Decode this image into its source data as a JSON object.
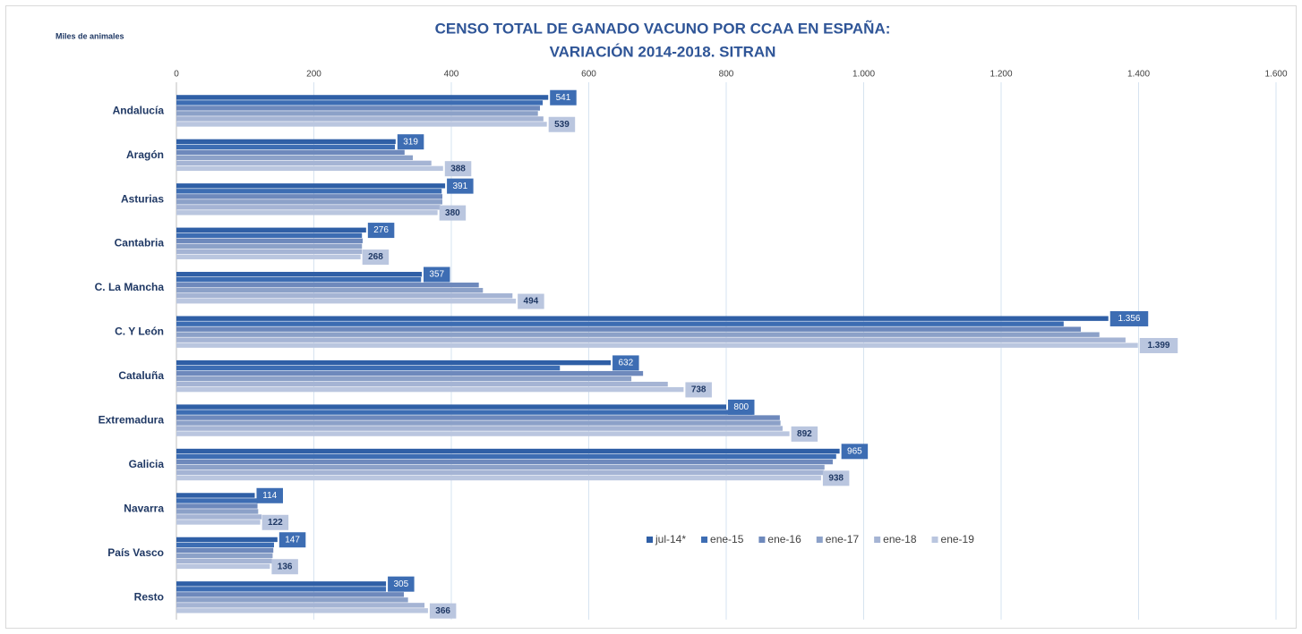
{
  "chart_data": {
    "type": "hbar",
    "title": [
      "CENSO TOTAL DE GANADO VACUNO POR CCAA EN ESPAÑA:",
      "VARIACIÓN 2014-2018. SITRAN"
    ],
    "unit_label": "Miles de animales",
    "categories": [
      "Andalucía",
      "Aragón",
      "Asturias",
      "Cantabria",
      "C. La Mancha",
      "C. Y León",
      "Cataluña",
      "Extremadura",
      "Galicia",
      "Navarra",
      "País Vasco",
      "Resto"
    ],
    "series": [
      {
        "name": "jul-14*",
        "color": "#2f5fa6",
        "values": [
          541,
          319,
          391,
          276,
          357,
          1356,
          632,
          800,
          965,
          114,
          147,
          305
        ],
        "value_labels": [
          "541",
          "319",
          "391",
          "276",
          "357",
          "1.356",
          "632",
          "800",
          "965",
          "114",
          "147",
          "305"
        ]
      },
      {
        "name": "ene-15",
        "color": "#3d6db3",
        "values": [
          533,
          318,
          386,
          270,
          356,
          1291,
          558,
          838,
          960,
          118,
          142,
          305
        ]
      },
      {
        "name": "ene-16",
        "color": "#6e89bc",
        "values": [
          529,
          332,
          387,
          271,
          440,
          1316,
          679,
          878,
          955,
          118,
          141,
          331
        ]
      },
      {
        "name": "ene-17",
        "color": "#8ca1c8",
        "values": [
          526,
          344,
          387,
          270,
          446,
          1343,
          662,
          879,
          943,
          119,
          140,
          337
        ]
      },
      {
        "name": "ene-18",
        "color": "#a5b4d4",
        "values": [
          534,
          371,
          384,
          270,
          489,
          1381,
          715,
          882,
          942,
          124,
          139,
          361
        ]
      },
      {
        "name": "ene-19",
        "color": "#bac6df",
        "values": [
          539,
          388,
          380,
          268,
          494,
          1399,
          738,
          892,
          938,
          122,
          136,
          366
        ],
        "value_labels": [
          "539",
          "388",
          "380",
          "268",
          "494",
          "1.399",
          "738",
          "892",
          "938",
          "122",
          "136",
          "366"
        ]
      }
    ],
    "xlim": [
      0,
      1600
    ],
    "xticks": [
      0,
      200,
      400,
      600,
      800,
      {
        "value": 1000,
        "label": "1.000"
      },
      {
        "value": 1200,
        "label": "1.200"
      },
      {
        "value": 1400,
        "label": "1.400"
      },
      {
        "value": 1600,
        "label": "1.600"
      }
    ],
    "grid": true
  }
}
